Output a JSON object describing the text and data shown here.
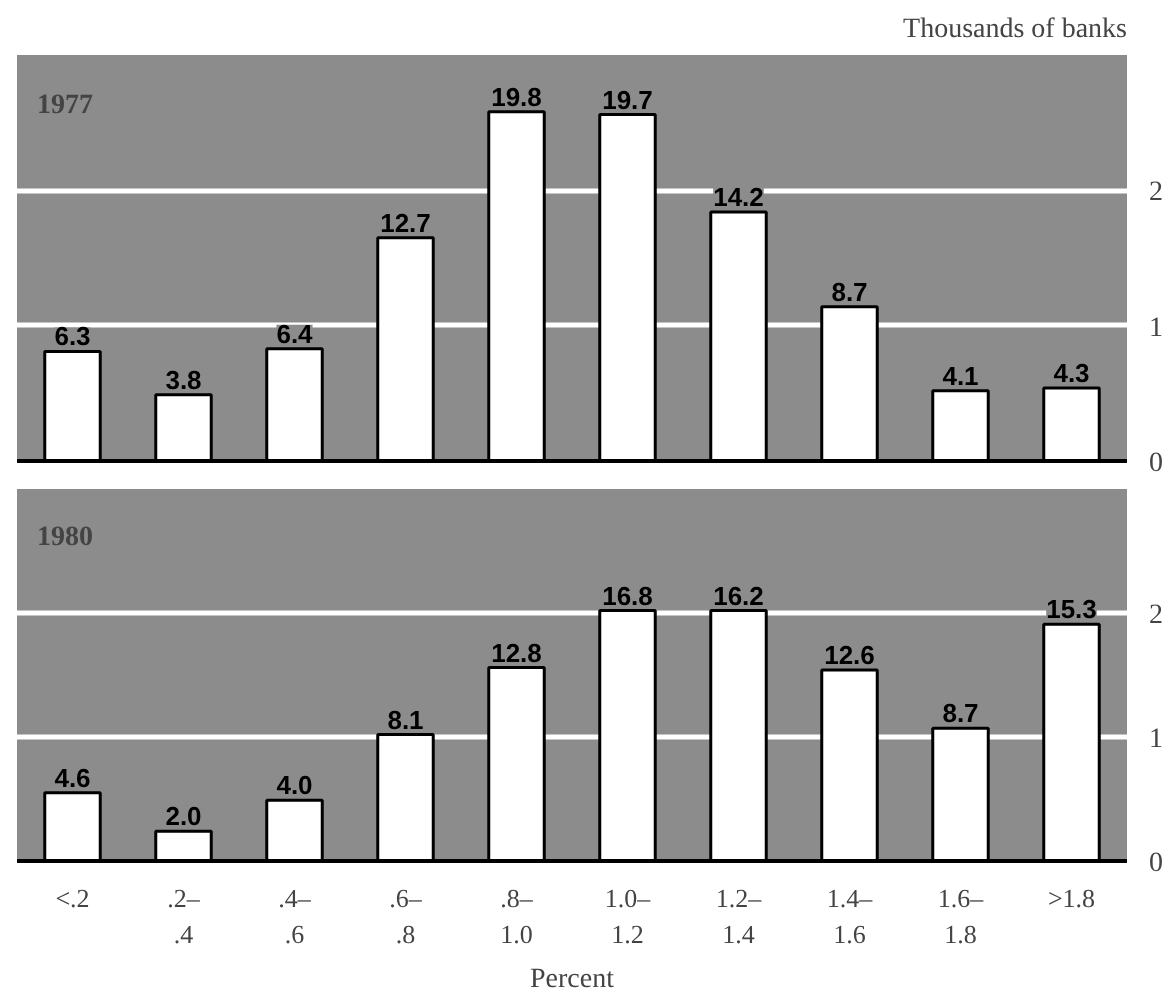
{
  "chart_data": [
    {
      "type": "bar",
      "title": "1977",
      "ylabel": "Thousands of banks",
      "categories": [
        "<.2",
        ".2–\n.4",
        ".4–\n.6",
        ".6–\n.8",
        ".8–\n1.0",
        "1.0–\n1.2",
        "1.2–\n1.4",
        "1.4–\n1.6",
        "1.6–\n1.8",
        ">1.8"
      ],
      "values": [
        0.81,
        0.49,
        0.83,
        1.65,
        2.58,
        2.56,
        1.84,
        1.14,
        0.52,
        0.54
      ],
      "annotations": [
        {
          "text": "6.3",
          "x": "<.2",
          "y": 0.81
        },
        {
          "text": "3.8",
          "x": ".2–\n.4",
          "y": 0.49
        },
        {
          "text": "6.4",
          "x": ".4–\n.6",
          "y": 0.83
        },
        {
          "text": "12.7",
          "x": ".6–\n.8",
          "y": 1.65
        },
        {
          "text": "19.8",
          "x": ".8–\n1.0",
          "y": 2.58
        },
        {
          "text": "19.7",
          "x": "1.0–\n1.2",
          "y": 2.56
        },
        {
          "text": "14.2",
          "x": "1.2–\n1.4",
          "y": 1.84
        },
        {
          "text": "8.7",
          "x": "1.4–\n1.6",
          "y": 1.14
        },
        {
          "text": "4.1",
          "x": "1.6–\n1.8",
          "y": 0.52
        },
        {
          "text": "4.3",
          "x": ">1.8",
          "y": 0.54
        }
      ],
      "color": "#ffffff",
      "ylim": [
        0,
        3
      ],
      "yticks": [
        0,
        1,
        2
      ],
      "grid": "y",
      "tick_labels": "y"
    },
    {
      "type": "bar",
      "title": "1980",
      "xlabel": "Percent",
      "categories": [
        "<.2",
        ".2–\n.4",
        ".4–\n.6",
        ".6–\n.8",
        ".8–\n1.0",
        "1.0–\n1.2",
        "1.2–\n1.4",
        "1.4–\n1.6",
        "1.6–\n1.8",
        ">1.8"
      ],
      "values": [
        0.55,
        0.24,
        0.49,
        1.02,
        1.56,
        2.02,
        2.02,
        1.54,
        1.07,
        1.91
      ],
      "annotations": [
        {
          "text": "4.6",
          "x": "<.2",
          "y": 0.55
        },
        {
          "text": "2.0",
          "x": ".2–\n.4",
          "y": 0.24
        },
        {
          "text": "4.0",
          "x": ".4–\n.6",
          "y": 0.49
        },
        {
          "text": "8.1",
          "x": ".6–\n.8",
          "y": 1.02
        },
        {
          "text": "12.8",
          "x": ".8–\n1.0",
          "y": 1.56
        },
        {
          "text": "16.8",
          "x": "1.0–\n1.2",
          "y": 2.02
        },
        {
          "text": "16.2",
          "x": "1.2–\n1.4",
          "y": 2.02
        },
        {
          "text": "12.6",
          "x": "1.4–\n1.6",
          "y": 1.54
        },
        {
          "text": "8.7",
          "x": "1.6–\n1.8",
          "y": 1.07
        },
        {
          "text": "15.3",
          "x": ">1.8",
          "y": 1.91
        }
      ],
      "color": "#ffffff",
      "ylim": [
        0,
        3
      ],
      "yticks": [
        0,
        1,
        2
      ],
      "grid": "y"
    }
  ]
}
